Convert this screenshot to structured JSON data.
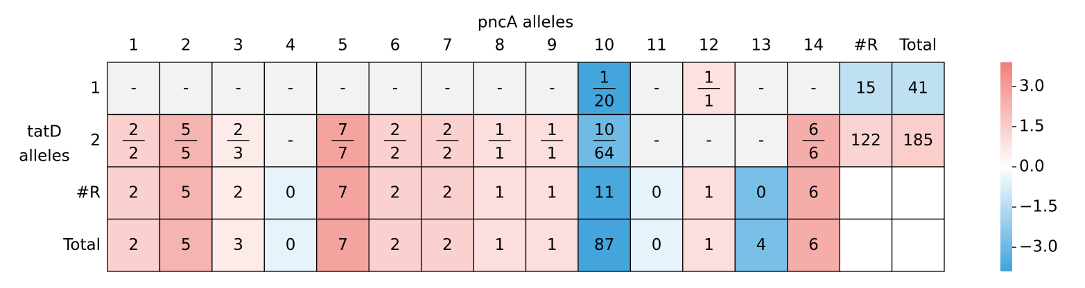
{
  "chart_data": {
    "type": "heatmap",
    "title": "pncA alleles",
    "ylabel": [
      "tatD",
      "alleles"
    ],
    "x_categories": [
      "1",
      "2",
      "3",
      "4",
      "5",
      "6",
      "7",
      "8",
      "9",
      "10",
      "11",
      "12",
      "13",
      "14",
      "#R",
      "Total"
    ],
    "y_categories": [
      "1",
      "2",
      "#R",
      "Total"
    ],
    "labels": [
      [
        "-",
        "-",
        "-",
        "-",
        "-",
        "-",
        "-",
        "-",
        "-",
        [
          "1",
          "20"
        ],
        "-",
        [
          "1",
          "1"
        ],
        "-",
        "-",
        "15",
        "41"
      ],
      [
        [
          "2",
          "2"
        ],
        [
          "5",
          "5"
        ],
        [
          "2",
          "3"
        ],
        "-",
        [
          "7",
          "7"
        ],
        [
          "2",
          "2"
        ],
        [
          "2",
          "2"
        ],
        [
          "1",
          "1"
        ],
        [
          "1",
          "1"
        ],
        [
          "10",
          "64"
        ],
        "-",
        "-",
        "-",
        [
          "6",
          "6"
        ],
        "122",
        "185"
      ],
      [
        "2",
        "5",
        "2",
        "0",
        "7",
        "2",
        "2",
        "1",
        "1",
        "11",
        "0",
        "1",
        "0",
        "6",
        null,
        null
      ],
      [
        "2",
        "5",
        "3",
        "0",
        "7",
        "2",
        "2",
        "1",
        "1",
        "87",
        "0",
        "1",
        "4",
        "6",
        null,
        null
      ]
    ],
    "values": [
      [
        null,
        null,
        null,
        null,
        null,
        null,
        null,
        null,
        null,
        -3.8,
        null,
        0.9,
        null,
        null,
        -1.3,
        -1.3
      ],
      [
        1.4,
        2.3,
        0.6,
        null,
        2.8,
        1.4,
        1.4,
        1.0,
        1.0,
        -2.9,
        null,
        null,
        null,
        2.5,
        1.3,
        1.5
      ],
      [
        1.4,
        2.3,
        0.6,
        -0.5,
        2.8,
        1.4,
        1.4,
        1.0,
        1.0,
        -3.7,
        -0.5,
        1.0,
        -2.7,
        2.5,
        null,
        null
      ],
      [
        1.4,
        2.3,
        0.6,
        -0.5,
        2.8,
        1.4,
        1.4,
        1.0,
        1.0,
        -3.8,
        -0.5,
        1.0,
        -2.7,
        2.5,
        null,
        null
      ]
    ],
    "clim": [
      -3.9,
      3.9
    ],
    "cticks": [
      {
        "value": 3,
        "label": "3.0"
      },
      {
        "value": 1.5,
        "label": "1.5"
      },
      {
        "value": 0,
        "label": "0.0"
      },
      {
        "value": -1.5,
        "label": "−1.5"
      },
      {
        "value": -3,
        "label": "−3.0"
      }
    ],
    "colors": {
      "negative": "#3fa3dc",
      "zero": "#ffffff",
      "positive": "#f07f79",
      "missing": "#f2f2f2"
    }
  }
}
